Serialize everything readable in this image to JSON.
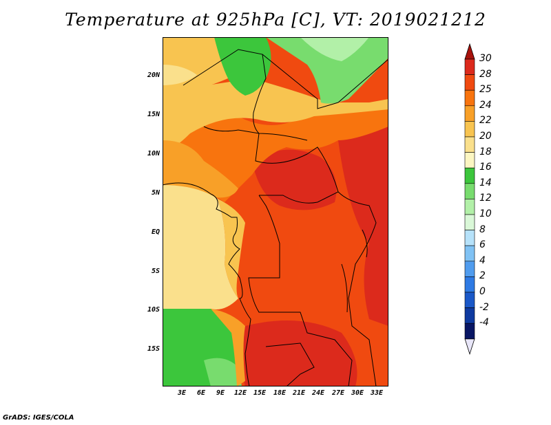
{
  "title": "Temperature at 925hPa [C], VT: 2019021212",
  "credit": "GrADS: IGES/COLA",
  "map": {
    "lat_labels": [
      "20N",
      "15N",
      "10N",
      "5N",
      "EQ",
      "5S",
      "10S",
      "15S"
    ],
    "lon_labels": [
      "3E",
      "6E",
      "9E",
      "12E",
      "15E",
      "18E",
      "21E",
      "24E",
      "27E",
      "30E",
      "33E"
    ]
  },
  "colorbar": {
    "labels": [
      "30",
      "28",
      "25",
      "24",
      "22",
      "20",
      "18",
      "16",
      "14",
      "12",
      "10",
      "8",
      "6",
      "4",
      "2",
      "0",
      "-2",
      "-4"
    ],
    "colors": [
      "#dc2a1c",
      "#f04a10",
      "#f8740e",
      "#f8a028",
      "#f8c450",
      "#fae08c",
      "#fcf6c2",
      "#3cc63c",
      "#78dc6e",
      "#b2f0a8",
      "#daf8d8",
      "#b6e2fa",
      "#80c2f4",
      "#509cee",
      "#2e7ae4",
      "#1a58c8",
      "#0e3aa0",
      "#081664"
    ],
    "top_arrow_color": "#a8120c",
    "bottom_arrow_color": "#e8e6f8"
  }
}
